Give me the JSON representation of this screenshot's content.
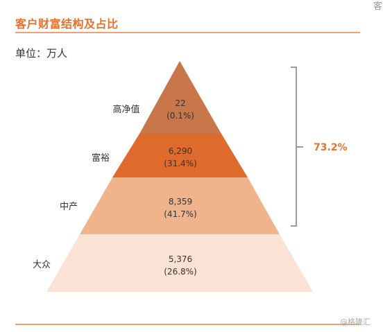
{
  "title": "客户财富结构及占比",
  "corner_char": "客",
  "unit_label": "单位：万人",
  "watermark": "@格隆汇",
  "bracket_percent": "73.2%",
  "colors": {
    "accent": "#e8722c",
    "tier_top": "#c8764a",
    "tier_rich": "#de6a2c",
    "tier_middle": "#f0b48c",
    "tier_mass": "#fae2d4"
  },
  "tiers": [
    {
      "label": "高净值",
      "value": "22",
      "pct": "(0.1%)"
    },
    {
      "label": "富裕",
      "value": "6,290",
      "pct": "(31.4%)"
    },
    {
      "label": "中产",
      "value": "8,359",
      "pct": "(41.7%)"
    },
    {
      "label": "大众",
      "value": "5,376",
      "pct": "(26.8%)"
    }
  ]
}
